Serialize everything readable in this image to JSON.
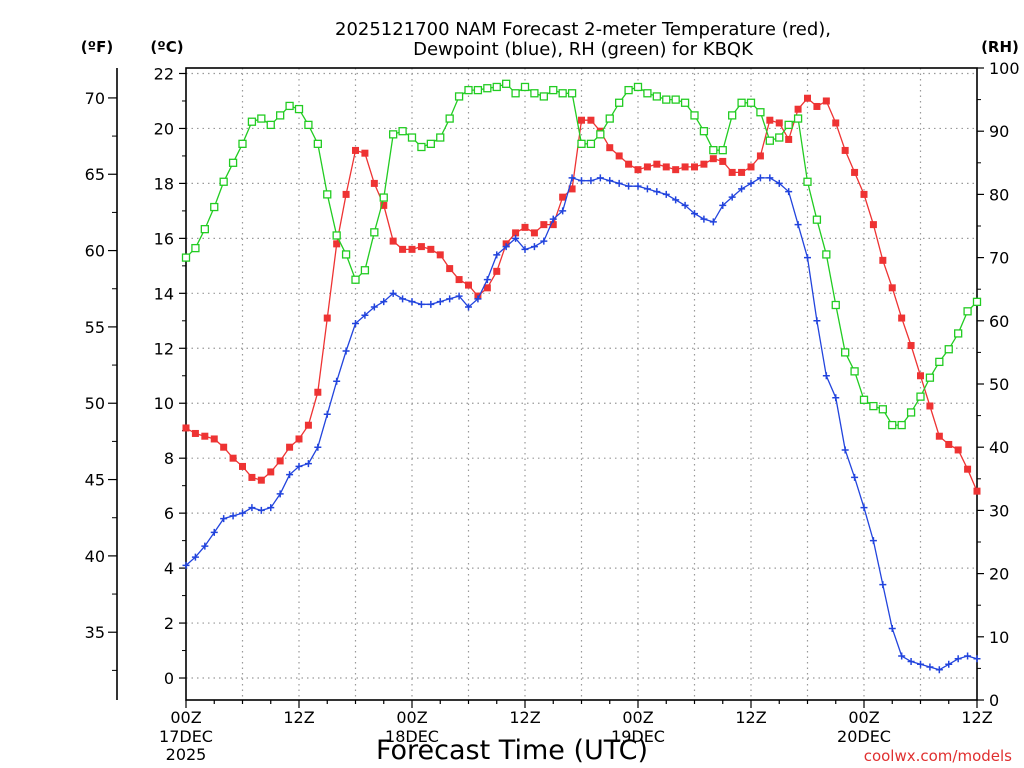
{
  "chart_data": {
    "type": "line",
    "title_line1": "2025121700 NAM Forecast 2-meter Temperature (red),",
    "title_line2": "Dewpoint (blue), RH (green) for KBQK",
    "units": {
      "fahrenheit": "(ºF)",
      "celsius": "(ºC)",
      "rh": "(RH)"
    },
    "xlabel": "Forecast Time (UTC)",
    "credit": "coolwx.com/models",
    "x_unit": "hours from 2025-12-17 00Z",
    "xlim": [
      0,
      84
    ],
    "ylim_celsius": [
      -0.8,
      22.2
    ],
    "ylim_rh": [
      0,
      100
    ],
    "x_ticks": [
      {
        "x": 0,
        "label": "00Z",
        "sub1": "17DEC",
        "sub2": "2025"
      },
      {
        "x": 12,
        "label": "12Z"
      },
      {
        "x": 24,
        "label": "00Z",
        "sub1": "18DEC"
      },
      {
        "x": 36,
        "label": "12Z"
      },
      {
        "x": 48,
        "label": "00Z",
        "sub1": "19DEC"
      },
      {
        "x": 60,
        "label": "12Z"
      },
      {
        "x": 72,
        "label": "00Z",
        "sub1": "20DEC"
      },
      {
        "x": 84,
        "label": "12Z"
      }
    ],
    "celsius_ticks": [
      "0",
      "2",
      "4",
      "6",
      "8",
      "10",
      "12",
      "14",
      "16",
      "18",
      "20",
      "22"
    ],
    "fahrenheit_ticks": [
      "35",
      "40",
      "45",
      "50",
      "55",
      "60",
      "65",
      "70"
    ],
    "rh_ticks": [
      "0",
      "10",
      "20",
      "30",
      "40",
      "50",
      "60",
      "70",
      "80",
      "90",
      "100"
    ],
    "grid": true,
    "series": [
      {
        "name": "Temperature",
        "color": "#ee3333",
        "marker": "filled-square",
        "axis": "celsius",
        "values": [
          9.1,
          8.9,
          8.8,
          8.7,
          8.4,
          8.0,
          7.7,
          7.3,
          7.2,
          7.5,
          7.9,
          8.4,
          8.7,
          9.2,
          10.4,
          13.1,
          15.8,
          17.6,
          19.2,
          19.1,
          18.0,
          17.2,
          15.9,
          15.6,
          15.6,
          15.7,
          15.6,
          15.4,
          14.9,
          14.5,
          14.3,
          13.9,
          14.2,
          14.8,
          15.8,
          16.2,
          16.4,
          16.2,
          16.5,
          16.5,
          17.5,
          17.8,
          20.3,
          20.3,
          19.9,
          19.3,
          19.0,
          18.7,
          18.5,
          18.6,
          18.7,
          18.6,
          18.5,
          18.6,
          18.6,
          18.7,
          18.9,
          18.8,
          18.4,
          18.4,
          18.6,
          19.0,
          20.3,
          20.2,
          19.6,
          20.7,
          21.1,
          20.8,
          21.0,
          20.2,
          19.2,
          18.4,
          17.6,
          16.5,
          15.2,
          14.2,
          13.1,
          12.1,
          11.0,
          9.9,
          8.8,
          8.5,
          8.3,
          7.6,
          6.8
        ]
      },
      {
        "name": "Dewpoint",
        "color": "#2244dd",
        "marker": "plus",
        "axis": "celsius",
        "values": [
          4.1,
          4.4,
          4.8,
          5.3,
          5.8,
          5.9,
          6.0,
          6.2,
          6.1,
          6.2,
          6.7,
          7.4,
          7.7,
          7.8,
          8.4,
          9.6,
          10.8,
          11.9,
          12.9,
          13.2,
          13.5,
          13.7,
          14.0,
          13.8,
          13.7,
          13.6,
          13.6,
          13.7,
          13.8,
          13.9,
          13.5,
          13.8,
          14.5,
          15.4,
          15.7,
          16.0,
          15.6,
          15.7,
          15.9,
          16.7,
          17.0,
          18.2,
          18.1,
          18.1,
          18.2,
          18.1,
          18.0,
          17.9,
          17.9,
          17.8,
          17.7,
          17.6,
          17.4,
          17.2,
          16.9,
          16.7,
          16.6,
          17.2,
          17.5,
          17.8,
          18.0,
          18.2,
          18.2,
          18.0,
          17.7,
          16.5,
          15.3,
          13.0,
          11.0,
          10.2,
          8.3,
          7.3,
          6.2,
          5.0,
          3.4,
          1.8,
          0.8,
          0.6,
          0.5,
          0.4,
          0.3,
          0.5,
          0.7,
          0.8,
          0.7
        ]
      },
      {
        "name": "RH",
        "color": "#22cc22",
        "marker": "open-square",
        "axis": "rh",
        "values": [
          70,
          71.5,
          74.5,
          78,
          82,
          85,
          88,
          91.5,
          92,
          91,
          92.5,
          94,
          93.5,
          91,
          88,
          80,
          73.5,
          70.5,
          66.5,
          68,
          74,
          79.5,
          89.5,
          90,
          89,
          87.5,
          88,
          89,
          92,
          95.5,
          96.5,
          96.5,
          96.8,
          97,
          97.5,
          96,
          97,
          96,
          95.5,
          96.5,
          96,
          96,
          88,
          88,
          89.5,
          92,
          94.5,
          96.5,
          97,
          96,
          95.5,
          95,
          95,
          94.5,
          92.5,
          90,
          87,
          87,
          92.5,
          94.5,
          94.5,
          93,
          88.5,
          89,
          91,
          92,
          82,
          76,
          70.5,
          62.5,
          55,
          52,
          47.5,
          46.5,
          46,
          43.5,
          43.5,
          45.5,
          48,
          51,
          53.5,
          55.5,
          58,
          61.5,
          63
        ]
      }
    ]
  }
}
